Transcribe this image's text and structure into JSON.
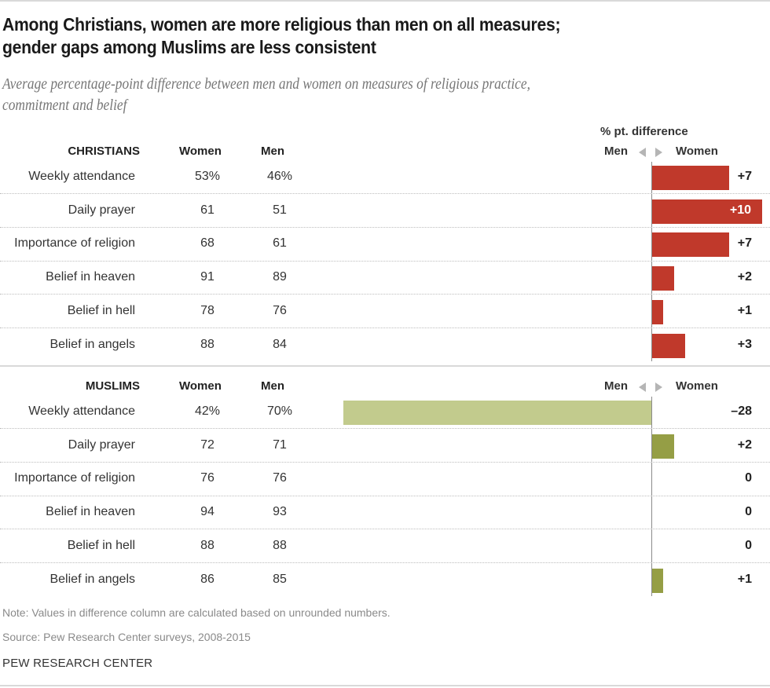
{
  "title": "Among Christians, women are more religious than men on all measures; gender gaps among Muslims are less consistent",
  "title_lines": [
    "Among Christians, women are more religious than men on all measures;",
    "gender gaps among Muslims are less consistent"
  ],
  "subtitle": "Average percentage-point difference between men and women on measures of religious practice, commitment and belief",
  "subtitle_lines": [
    "Average percentage-point difference between men and women on measures of religious practice,",
    "commitment and belief"
  ],
  "diff_header": "% pt. difference",
  "direction_left": "Men",
  "direction_right": "Women",
  "colors": {
    "christians_bar": "#c0392b",
    "muslims_bar_light": "#c2cb8d",
    "muslims_bar_dark": "#959e45"
  },
  "note": "Note: Values in difference column are calculated based on unrounded numbers.",
  "source": "Source: Pew Research Center surveys, 2008-2015",
  "brand": "PEW RESEARCH CENTER",
  "chart_data": {
    "type": "bar",
    "orientation": "horizontal-diverging",
    "title": "Among Christians, women are more religious than men on all measures; gender gaps among Muslims are less consistent",
    "xlabel": "% pt. difference",
    "axis_direction": {
      "negative": "Men",
      "positive": "Women"
    },
    "grid": false,
    "groups": [
      {
        "name": "CHRISTIANS",
        "column_headers": [
          "Women",
          "Men"
        ],
        "rows": [
          {
            "label": "Weekly attendance",
            "women": "53%",
            "men": "46%",
            "diff": 7,
            "diff_label": "+7"
          },
          {
            "label": "Daily prayer",
            "women": "61",
            "men": "51",
            "diff": 10,
            "diff_label": "+10"
          },
          {
            "label": "Importance of religion",
            "women": "68",
            "men": "61",
            "diff": 7,
            "diff_label": "+7"
          },
          {
            "label": "Belief in heaven",
            "women": "91",
            "men": "89",
            "diff": 2,
            "diff_label": "+2"
          },
          {
            "label": "Belief in hell",
            "women": "78",
            "men": "76",
            "diff": 1,
            "diff_label": "+1"
          },
          {
            "label": "Belief in angels",
            "women": "88",
            "men": "84",
            "diff": 3,
            "diff_label": "+3"
          }
        ]
      },
      {
        "name": "MUSLIMS",
        "column_headers": [
          "Women",
          "Men"
        ],
        "rows": [
          {
            "label": "Weekly attendance",
            "women": "42%",
            "men": "70%",
            "diff": -28,
            "diff_label": "–28"
          },
          {
            "label": "Daily prayer",
            "women": "72",
            "men": "71",
            "diff": 2,
            "diff_label": "+2"
          },
          {
            "label": "Importance of religion",
            "women": "76",
            "men": "76",
            "diff": 0,
            "diff_label": "0"
          },
          {
            "label": "Belief in heaven",
            "women": "94",
            "men": "93",
            "diff": 0,
            "diff_label": "0"
          },
          {
            "label": "Belief in hell",
            "women": "88",
            "men": "88",
            "diff": 0,
            "diff_label": "0"
          },
          {
            "label": "Belief in angels",
            "women": "86",
            "men": "85",
            "diff": 1,
            "diff_label": "+1"
          }
        ]
      }
    ]
  }
}
